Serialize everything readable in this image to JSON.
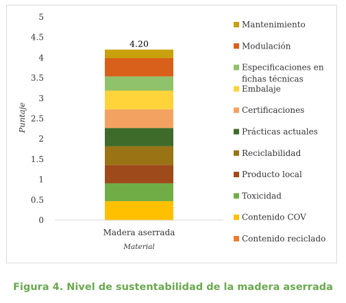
{
  "chart_data": {
    "type": "bar",
    "stacked": true,
    "categories": [
      "Madera aserrada"
    ],
    "xlabel": "Material",
    "ylabel": "Puntaje",
    "ylim": [
      0,
      5
    ],
    "yticks": [
      "0",
      "0.5",
      "1",
      "1.5",
      "2",
      "2.5",
      "3",
      "3.5",
      "4",
      "4.5",
      "5"
    ],
    "total_label": "4.20",
    "grid": false,
    "legend_position": "right",
    "series": [
      {
        "name": "Contenido reciclado",
        "values": [
          0.0
        ],
        "color": "#ed7d31"
      },
      {
        "name": "Contenido COV",
        "values": [
          0.47
        ],
        "color": "#ffc000"
      },
      {
        "name": "Toxicidad",
        "values": [
          0.44
        ],
        "color": "#70ad47"
      },
      {
        "name": "Producto local",
        "values": [
          0.45
        ],
        "color": "#9e4a1a"
      },
      {
        "name": "Reciclabilidad",
        "values": [
          0.46
        ],
        "color": "#9a7315"
      },
      {
        "name": "Prácticas actuales",
        "values": [
          0.45
        ],
        "color": "#3f6b2a"
      },
      {
        "name": "Certificaciones",
        "values": [
          0.46
        ],
        "color": "#f4a261"
      },
      {
        "name": "Embalaje",
        "values": [
          0.46
        ],
        "color": "#ffd43b"
      },
      {
        "name": "Especificaciones en fichas técnicas",
        "values": [
          0.35
        ],
        "color": "#8fc26a"
      },
      {
        "name": "Modulación",
        "values": [
          0.45
        ],
        "color": "#d9601a"
      },
      {
        "name": "Mantenimiento",
        "values": [
          0.21
        ],
        "color": "#c9a00e"
      }
    ]
  },
  "legend": {
    "items": [
      {
        "lines": [
          "Mantenimiento"
        ],
        "color": "#c9a00e"
      },
      {
        "lines": [
          "Modulación"
        ],
        "color": "#d9601a"
      },
      {
        "lines": [
          "Especificaciones en",
          "fichas técnicas"
        ],
        "color": "#8fc26a"
      },
      {
        "lines": [
          "Embalaje"
        ],
        "color": "#ffd43b"
      },
      {
        "lines": [
          "Certificaciones"
        ],
        "color": "#f4a261"
      },
      {
        "lines": [
          "Prácticas actuales"
        ],
        "color": "#3f6b2a"
      },
      {
        "lines": [
          "Reciclabilidad"
        ],
        "color": "#9a7315"
      },
      {
        "lines": [
          "Producto local"
        ],
        "color": "#9e4a1a"
      },
      {
        "lines": [
          "Toxicidad"
        ],
        "color": "#70ad47"
      },
      {
        "lines": [
          "Contenido COV"
        ],
        "color": "#ffc000"
      },
      {
        "lines": [
          "Contenido reciclado"
        ],
        "color": "#ed7d31"
      }
    ]
  },
  "caption": "Figura 4. Nivel de sustentabilidad de la madera aserrada"
}
